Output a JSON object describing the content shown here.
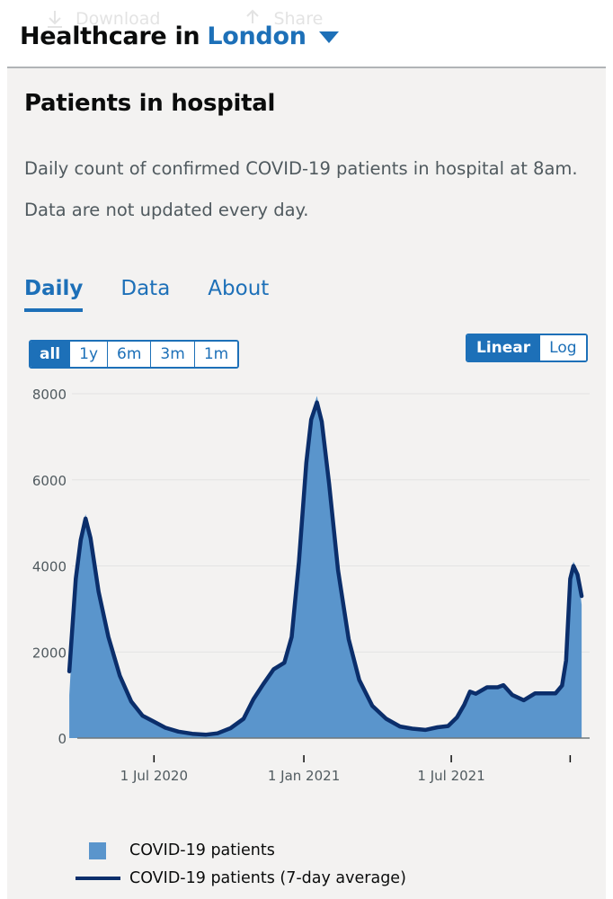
{
  "top_actions": [
    {
      "icon": "download-icon",
      "label": "Download"
    },
    {
      "icon": "share-icon",
      "label": "Share"
    }
  ],
  "header": {
    "prefix": "Healthcare in",
    "area": "London",
    "dropdown_icon": "caret-down-icon"
  },
  "card": {
    "title": "Patients in hospital",
    "description_1": "Daily count of confirmed COVID-19 patients in hospital at 8am.",
    "description_2": "Data are not updated every day."
  },
  "tabs": [
    {
      "label": "Daily",
      "active": true
    },
    {
      "label": "Data",
      "active": false
    },
    {
      "label": "About",
      "active": false
    }
  ],
  "range_buttons": [
    {
      "label": "all",
      "active": true
    },
    {
      "label": "1y",
      "active": false
    },
    {
      "label": "6m",
      "active": false
    },
    {
      "label": "3m",
      "active": false
    },
    {
      "label": "1m",
      "active": false
    }
  ],
  "scale_buttons": [
    {
      "label": "Linear",
      "active": true
    },
    {
      "label": "Log",
      "active": false
    }
  ],
  "colors": {
    "bar_fill": "#5a95cc",
    "average_line": "#0b2e6b",
    "accent": "#1d70b8"
  },
  "legend": {
    "patients": "COVID-19 patients",
    "average": "COVID-19 patients (7-day average)"
  },
  "chart_data": {
    "type": "area",
    "title": "Patients in hospital",
    "xlabel": "",
    "ylabel": "",
    "ylim": [
      0,
      8000
    ],
    "yticks": [
      0,
      2000,
      4000,
      6000,
      8000
    ],
    "xlim": [
      "2020-03-20",
      "2021-11-28"
    ],
    "x_tick_labels": [
      {
        "date": "2020-07-01",
        "label": "1 Jul 2020"
      },
      {
        "date": "2021-01-01",
        "label": "1 Jan 2021"
      },
      {
        "date": "2021-07-01",
        "label": "1 Jul 2021"
      },
      {
        "date": "2021-11-24",
        "label": ""
      }
    ],
    "grid": true,
    "legend_position": "bottom",
    "series": [
      {
        "name": "COVID-19 patients",
        "kind": "area",
        "points": [
          [
            "2020-03-19",
            1000
          ],
          [
            "2020-03-27",
            3600
          ],
          [
            "2020-04-02",
            4700
          ],
          [
            "2020-04-08",
            5200
          ],
          [
            "2020-04-14",
            4600
          ],
          [
            "2020-04-24",
            3300
          ],
          [
            "2020-05-06",
            2300
          ],
          [
            "2020-05-20",
            1400
          ],
          [
            "2020-06-03",
            850
          ],
          [
            "2020-06-17",
            520
          ],
          [
            "2020-07-01",
            380
          ],
          [
            "2020-07-15",
            240
          ],
          [
            "2020-07-31",
            150
          ],
          [
            "2020-08-17",
            100
          ],
          [
            "2020-09-03",
            80
          ],
          [
            "2020-09-17",
            110
          ],
          [
            "2020-10-03",
            240
          ],
          [
            "2020-10-19",
            450
          ],
          [
            "2020-10-31",
            900
          ],
          [
            "2020-11-12",
            1250
          ],
          [
            "2020-11-25",
            1650
          ],
          [
            "2020-12-08",
            1750
          ],
          [
            "2020-12-17",
            2400
          ],
          [
            "2020-12-26",
            4200
          ],
          [
            "2021-01-04",
            6500
          ],
          [
            "2021-01-10",
            7500
          ],
          [
            "2021-01-17",
            7950
          ],
          [
            "2021-01-23",
            7400
          ],
          [
            "2021-02-01",
            6000
          ],
          [
            "2021-02-12",
            4000
          ],
          [
            "2021-02-25",
            2300
          ],
          [
            "2021-03-10",
            1350
          ],
          [
            "2021-03-26",
            750
          ],
          [
            "2021-04-12",
            450
          ],
          [
            "2021-04-29",
            270
          ],
          [
            "2021-05-14",
            220
          ],
          [
            "2021-05-30",
            190
          ],
          [
            "2021-06-14",
            250
          ],
          [
            "2021-06-27",
            280
          ],
          [
            "2021-07-08",
            480
          ],
          [
            "2021-07-17",
            800
          ],
          [
            "2021-07-24",
            1100
          ],
          [
            "2021-07-31",
            1000
          ],
          [
            "2021-08-14",
            1200
          ],
          [
            "2021-08-27",
            1200
          ],
          [
            "2021-09-03",
            1260
          ],
          [
            "2021-09-14",
            1000
          ],
          [
            "2021-09-28",
            880
          ],
          [
            "2021-10-12",
            1060
          ],
          [
            "2021-10-27",
            1060
          ],
          [
            "2021-11-06",
            1060
          ],
          [
            "2021-11-14",
            1250
          ],
          [
            "2021-11-19",
            1900
          ],
          [
            "2021-11-24",
            3800
          ],
          [
            "2021-11-28",
            4100
          ],
          [
            "2021-12-03",
            3900
          ],
          [
            "2021-12-08",
            3100
          ]
        ]
      },
      {
        "name": "COVID-19 patients (7-day average)",
        "kind": "line",
        "points": [
          [
            "2020-03-19",
            1550
          ],
          [
            "2020-03-27",
            3700
          ],
          [
            "2020-04-02",
            4600
          ],
          [
            "2020-04-08",
            5100
          ],
          [
            "2020-04-14",
            4650
          ],
          [
            "2020-04-24",
            3400
          ],
          [
            "2020-05-06",
            2350
          ],
          [
            "2020-05-20",
            1450
          ],
          [
            "2020-06-03",
            850
          ],
          [
            "2020-06-17",
            520
          ],
          [
            "2020-07-01",
            380
          ],
          [
            "2020-07-15",
            240
          ],
          [
            "2020-07-31",
            150
          ],
          [
            "2020-08-17",
            100
          ],
          [
            "2020-09-03",
            80
          ],
          [
            "2020-09-17",
            110
          ],
          [
            "2020-10-03",
            230
          ],
          [
            "2020-10-19",
            450
          ],
          [
            "2020-10-31",
            900
          ],
          [
            "2020-11-12",
            1250
          ],
          [
            "2020-11-25",
            1600
          ],
          [
            "2020-12-08",
            1750
          ],
          [
            "2020-12-17",
            2350
          ],
          [
            "2020-12-26",
            4100
          ],
          [
            "2021-01-04",
            6400
          ],
          [
            "2021-01-10",
            7400
          ],
          [
            "2021-01-17",
            7800
          ],
          [
            "2021-01-23",
            7350
          ],
          [
            "2021-02-01",
            5900
          ],
          [
            "2021-02-12",
            3900
          ],
          [
            "2021-02-25",
            2300
          ],
          [
            "2021-03-10",
            1350
          ],
          [
            "2021-03-26",
            750
          ],
          [
            "2021-04-12",
            450
          ],
          [
            "2021-04-29",
            270
          ],
          [
            "2021-05-14",
            220
          ],
          [
            "2021-05-30",
            190
          ],
          [
            "2021-06-14",
            250
          ],
          [
            "2021-06-27",
            280
          ],
          [
            "2021-07-08",
            480
          ],
          [
            "2021-07-17",
            780
          ],
          [
            "2021-07-24",
            1080
          ],
          [
            "2021-07-31",
            1030
          ],
          [
            "2021-08-14",
            1180
          ],
          [
            "2021-08-27",
            1180
          ],
          [
            "2021-09-03",
            1230
          ],
          [
            "2021-09-14",
            1000
          ],
          [
            "2021-09-28",
            880
          ],
          [
            "2021-10-12",
            1040
          ],
          [
            "2021-10-27",
            1040
          ],
          [
            "2021-11-06",
            1040
          ],
          [
            "2021-11-14",
            1220
          ],
          [
            "2021-11-19",
            1800
          ],
          [
            "2021-11-24",
            3700
          ],
          [
            "2021-11-28",
            4000
          ],
          [
            "2021-12-03",
            3800
          ],
          [
            "2021-12-08",
            3300
          ]
        ]
      }
    ]
  }
}
